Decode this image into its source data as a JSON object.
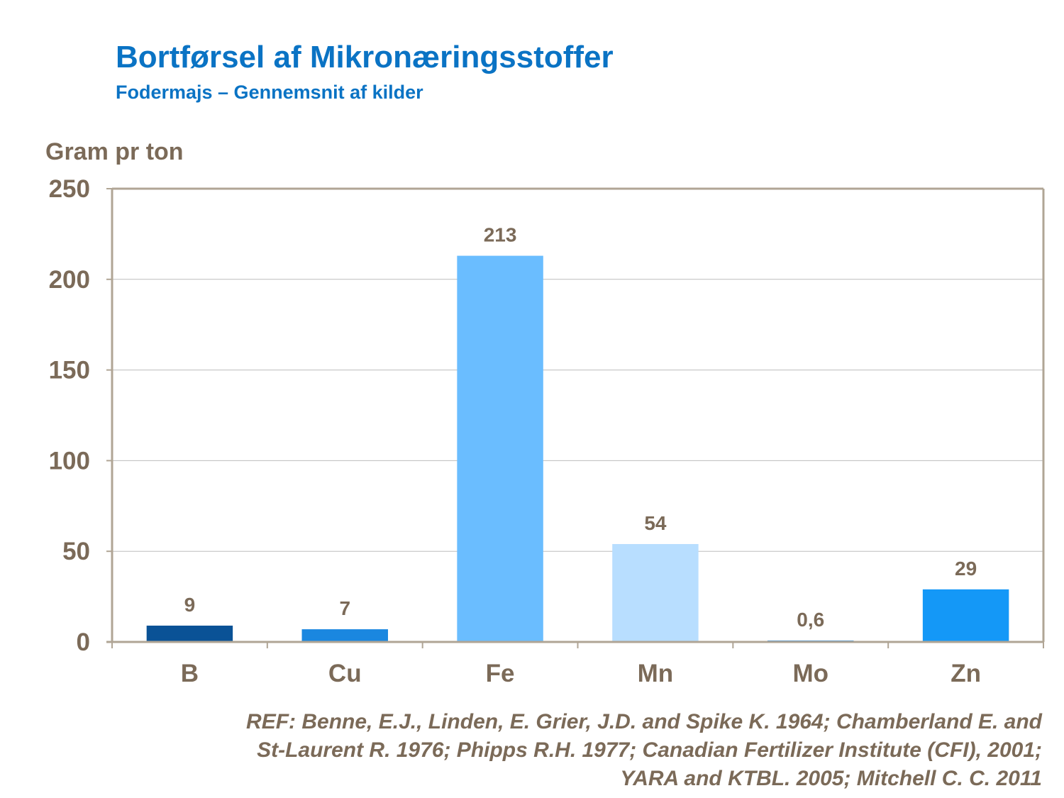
{
  "title": "Bortførsel af Mikronæringsstoffer",
  "subtitle": "Fodermajs – Gennemsnit af kilder",
  "reference": [
    "REF: Benne, E.J., Linden, E. Grier, J.D. and Spike K. 1964; Chamberland  E. and",
    "St-Laurent R. 1976; Phipps R.H. 1977; Canadian Fertilizer Institute (CFI), 2001;",
    "YARA and KTBL. 2005; Mitchell C. C. 2011"
  ],
  "chart_data": {
    "type": "bar",
    "title": "Bortførsel af Mikronæringsstoffer",
    "subtitle": "Fodermajs – Gennemsnit af kilder",
    "ylabel": "Gram pr ton",
    "xlabel": "",
    "categories": [
      "B",
      "Cu",
      "Fe",
      "Mn",
      "Mo",
      "Zn"
    ],
    "values": [
      9,
      7,
      213,
      54,
      0.6,
      29
    ],
    "data_labels": [
      "9",
      "7",
      "213",
      "54",
      "0,6",
      "29"
    ],
    "colors": [
      "#0a5296",
      "#1a87e0",
      "#6abdff",
      "#b8deff",
      "#1a87e0",
      "#1498f7"
    ],
    "ylim": [
      0,
      250
    ],
    "yticks": [
      0,
      50,
      100,
      150,
      200,
      250
    ],
    "grid": true,
    "legend": "none"
  }
}
